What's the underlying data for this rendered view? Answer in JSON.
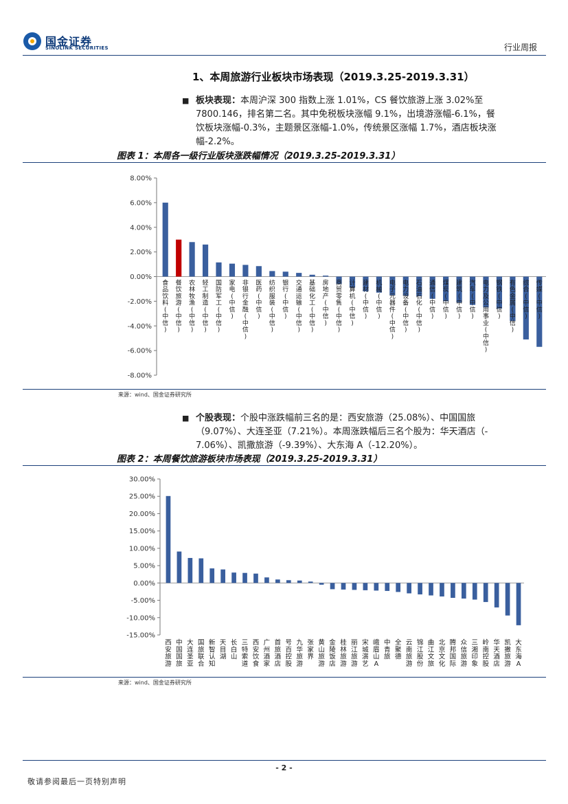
{
  "header": {
    "brand_cn": "国金证券",
    "brand_en": "SINOLINK SECURITIES",
    "report_type": "行业周报",
    "logo_color": "#1a5aa8"
  },
  "section_title": "1、本周旅游行业板块市场表现（2019.3.25-2019.3.31）",
  "para1": {
    "lead": "板块表现：",
    "line1": "本周沪深 300 指数上涨 1.01%，CS 餐饮旅游上涨 3.02%至",
    "line2": "7800.146，排名第二名。其中免税板块涨幅 9.1%，出境游涨幅-6.1%，餐",
    "line3": "饮板块涨幅-0.3%，主题景区涨幅-1.0%，传统景区涨幅 1.7%，酒店板块涨",
    "line4": "幅-2.2%。"
  },
  "para2": {
    "lead": "个股表现：",
    "line1": "个股中涨跌幅前三名的是：西安旅游（25.08%）、中国国旅",
    "line2": "（9.07%）、大连圣亚（7.21%）。本周涨跌幅后三名个股为：华天酒店（-",
    "line3": "7.06%）、凯撒旅游（-9.39%）、大东海 A（-12.20%）。"
  },
  "chart_data": [
    {
      "type": "bar",
      "title": "图表 1：本周各一级行业版块涨跌幅情况（2019.3.25-2019.3.31）",
      "source": "来源：wind、国金证券研究所",
      "ylim": [
        -8,
        8
      ],
      "yticks": [
        "8.00%",
        "6.00%",
        "4.00%",
        "2.00%",
        "0.00%",
        "-2.00%",
        "-4.00%",
        "-6.00%",
        "-8.00%"
      ],
      "categories": [
        "食品饮料(中信)",
        "餐饮旅游(中信)",
        "农林牧渔(中信)",
        "轻工制造(中信)",
        "国防军工(中信)",
        "家电(中信)",
        "非银行金融(中信)",
        "医药(中信)",
        "纺织服装(中信)",
        "银行(中信)",
        "交通运输(中信)",
        "基础化工(中信)",
        "房地产(中信)",
        "商贸零售(中信)",
        "计算机(中信)",
        "建材(中信)",
        "机械(中信)",
        "电子元器件(中信)",
        "电力设备(中信)",
        "石油石化(中信)",
        "通信(中信)",
        "煤炭(中信)",
        "建筑(中信)",
        "汽车(中信)",
        "电力及公用事业(中信)",
        "钢铁(中信)",
        "有色金属(中信)",
        "综合(中信)",
        "传媒(中信)"
      ],
      "values": [
        6.0,
        3.0,
        2.8,
        2.6,
        1.15,
        1.05,
        0.95,
        0.85,
        0.45,
        0.4,
        0.3,
        0.15,
        0.08,
        -0.6,
        -0.9,
        -1.2,
        -1.3,
        -1.5,
        -1.55,
        -1.6,
        -1.8,
        -2.0,
        -2.1,
        -2.3,
        -2.5,
        -2.6,
        -3.6,
        -5.1,
        -5.7
      ],
      "colors": {
        "default": "#3a5f9e",
        "highlight": "#c00000"
      },
      "highlight_index": 1
    },
    {
      "type": "bar",
      "title": "图表 2：本周餐饮旅游板块市场表现（2019.3.25-2019.3.31）",
      "source": "来源：wind、国金证券研究所",
      "ylim": [
        -15,
        30
      ],
      "yticks": [
        "30.00%",
        "25.00%",
        "20.00%",
        "15.00%",
        "10.00%",
        "5.00%",
        "0.00%",
        "-5.00%",
        "-10.00%",
        "-15.00%"
      ],
      "categories": [
        "西安旅游",
        "中国国旅",
        "大连圣亚",
        "国旅联合",
        "新智认知",
        "天目湖",
        "长白山",
        "三特索道",
        "西安饮食",
        "广州酒家",
        "首旅酒店",
        "号百控股",
        "九华旅游",
        "张家界",
        "黄山旅游",
        "金陵饭店",
        "桂林旅游",
        "丽江旅游",
        "宋城演艺",
        "峨眉山A",
        "中青旅",
        "全聚德",
        "云南旅游",
        "锦江股份",
        "曲江文旅",
        "北京文化",
        "腾邦国际",
        "众信旅游",
        "三湘印象",
        "岭南控股",
        "华天酒店",
        "凯撒旅游",
        "大东海A"
      ],
      "values": [
        25.08,
        9.07,
        7.21,
        7.1,
        4.2,
        3.9,
        3.0,
        2.9,
        2.7,
        1.6,
        1.0,
        0.8,
        0.7,
        0.4,
        -0.5,
        -1.8,
        -1.9,
        -2.0,
        -2.1,
        -2.2,
        -2.3,
        -2.6,
        -3.0,
        -3.3,
        -3.6,
        -3.9,
        -4.3,
        -4.5,
        -4.8,
        -5.5,
        -7.06,
        -9.39,
        -12.2
      ],
      "colors": {
        "default": "#3a5f9e"
      }
    }
  ],
  "footer": {
    "page": "- 2 -",
    "note": "敬请参阅最后一页特别声明"
  }
}
